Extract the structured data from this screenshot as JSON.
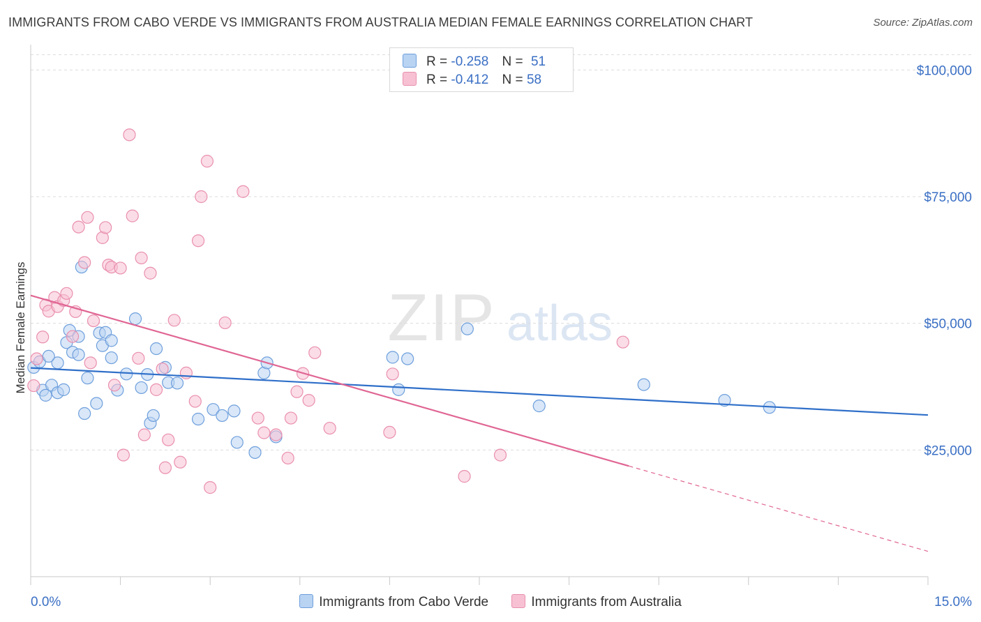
{
  "title": "IMMIGRANTS FROM CABO VERDE VS IMMIGRANTS FROM AUSTRALIA MEDIAN FEMALE EARNINGS CORRELATION CHART",
  "source": "Source: ZipAtlas.com",
  "watermark": {
    "zip": "ZIP",
    "atlas": "atlas"
  },
  "legend": {
    "r_label": "R =",
    "n_label": "N =",
    "series": [
      {
        "r": "-0.258",
        "n": "51"
      },
      {
        "r": "-0.412",
        "n": "58"
      }
    ]
  },
  "colors": {
    "blue_fill": "#b9d3f3",
    "blue_stroke": "#6e9fdc",
    "blue_line": "#2f6fc9",
    "pink_fill": "#f7c1d3",
    "pink_stroke": "#e98fae",
    "pink_line": "#e06593",
    "axis_text": "#3a6fc4",
    "grid": "#dcdcdc"
  },
  "chart_data": {
    "type": "scatter",
    "title": "IMMIGRANTS FROM CABO VERDE VS IMMIGRANTS FROM AUSTRALIA MEDIAN FEMALE EARNINGS CORRELATION CHART",
    "xlabel": "",
    "ylabel": "Median Female Earnings",
    "xlim": [
      0,
      15
    ],
    "ylim": [
      0,
      105000
    ],
    "x_tick_labels": [
      "0.0%",
      "15.0%"
    ],
    "y_ticks": [
      25000,
      50000,
      75000,
      100000
    ],
    "y_tick_labels": [
      "$25,000",
      "$50,000",
      "$75,000",
      "$100,000"
    ],
    "grid": true,
    "legend_position": "top-center",
    "series": [
      {
        "name": "Immigrants from Cabo Verde",
        "color": "blue",
        "trend": {
          "x0": 0,
          "y0": 41200,
          "x1": 15,
          "y1": 31900,
          "dashed_from": null
        },
        "points": [
          [
            0.05,
            41300
          ],
          [
            0.15,
            42400
          ],
          [
            0.2,
            36800
          ],
          [
            0.25,
            35800
          ],
          [
            0.35,
            37800
          ],
          [
            0.45,
            36300
          ],
          [
            0.45,
            42200
          ],
          [
            0.55,
            36900
          ],
          [
            0.6,
            46200
          ],
          [
            0.65,
            48600
          ],
          [
            0.7,
            44300
          ],
          [
            0.8,
            47400
          ],
          [
            0.8,
            43800
          ],
          [
            0.85,
            61100
          ],
          [
            0.9,
            32200
          ],
          [
            0.95,
            39200
          ],
          [
            1.1,
            34200
          ],
          [
            1.15,
            48100
          ],
          [
            1.2,
            45600
          ],
          [
            1.25,
            48200
          ],
          [
            1.35,
            46600
          ],
          [
            1.35,
            43200
          ],
          [
            1.45,
            36800
          ],
          [
            1.6,
            40000
          ],
          [
            1.75,
            50900
          ],
          [
            1.85,
            37300
          ],
          [
            1.95,
            39900
          ],
          [
            2.0,
            30300
          ],
          [
            2.05,
            31800
          ],
          [
            2.1,
            45000
          ],
          [
            2.25,
            41300
          ],
          [
            2.3,
            38300
          ],
          [
            2.45,
            38200
          ],
          [
            2.8,
            31100
          ],
          [
            3.05,
            33000
          ],
          [
            3.2,
            31800
          ],
          [
            3.4,
            32700
          ],
          [
            3.45,
            26500
          ],
          [
            3.75,
            24500
          ],
          [
            3.9,
            40200
          ],
          [
            3.95,
            42200
          ],
          [
            4.1,
            27600
          ],
          [
            6.05,
            43300
          ],
          [
            6.15,
            36900
          ],
          [
            6.3,
            43000
          ],
          [
            7.3,
            48900
          ],
          [
            8.5,
            33700
          ],
          [
            10.25,
            37900
          ],
          [
            11.6,
            34800
          ],
          [
            12.35,
            33400
          ],
          [
            0.3,
            43500
          ]
        ]
      },
      {
        "name": "Immigrants from Australia",
        "color": "pink",
        "trend": {
          "x0": 0,
          "y0": 55500,
          "x1": 15,
          "y1": 5000,
          "dashed_from": 10.0
        },
        "points": [
          [
            0.05,
            37700
          ],
          [
            0.1,
            43000
          ],
          [
            0.2,
            47300
          ],
          [
            0.25,
            53600
          ],
          [
            0.3,
            52400
          ],
          [
            0.4,
            55100
          ],
          [
            0.45,
            53300
          ],
          [
            0.55,
            54500
          ],
          [
            0.6,
            55900
          ],
          [
            0.7,
            47400
          ],
          [
            0.75,
            52300
          ],
          [
            0.8,
            69000
          ],
          [
            0.9,
            62000
          ],
          [
            0.95,
            70900
          ],
          [
            1.0,
            42200
          ],
          [
            1.05,
            50500
          ],
          [
            1.2,
            66900
          ],
          [
            1.25,
            68900
          ],
          [
            1.3,
            61500
          ],
          [
            1.35,
            61100
          ],
          [
            1.4,
            37800
          ],
          [
            1.5,
            60900
          ],
          [
            1.55,
            24000
          ],
          [
            1.65,
            87200
          ],
          [
            1.7,
            71200
          ],
          [
            1.8,
            43100
          ],
          [
            1.85,
            62900
          ],
          [
            1.9,
            28000
          ],
          [
            2.0,
            59900
          ],
          [
            2.1,
            36900
          ],
          [
            2.2,
            41000
          ],
          [
            2.25,
            21500
          ],
          [
            2.3,
            27000
          ],
          [
            2.4,
            50600
          ],
          [
            2.5,
            22600
          ],
          [
            2.6,
            40200
          ],
          [
            2.75,
            34600
          ],
          [
            2.8,
            66300
          ],
          [
            2.85,
            75000
          ],
          [
            2.95,
            82000
          ],
          [
            3.0,
            17600
          ],
          [
            3.25,
            50100
          ],
          [
            3.55,
            76000
          ],
          [
            3.8,
            31300
          ],
          [
            3.9,
            28400
          ],
          [
            4.1,
            28000
          ],
          [
            4.3,
            23400
          ],
          [
            4.35,
            31300
          ],
          [
            4.45,
            36500
          ],
          [
            4.55,
            40100
          ],
          [
            4.65,
            34800
          ],
          [
            4.75,
            44200
          ],
          [
            5.0,
            29300
          ],
          [
            6.0,
            28500
          ],
          [
            6.05,
            40000
          ],
          [
            7.25,
            19800
          ],
          [
            7.85,
            24000
          ],
          [
            9.9,
            46300
          ]
        ]
      }
    ]
  }
}
